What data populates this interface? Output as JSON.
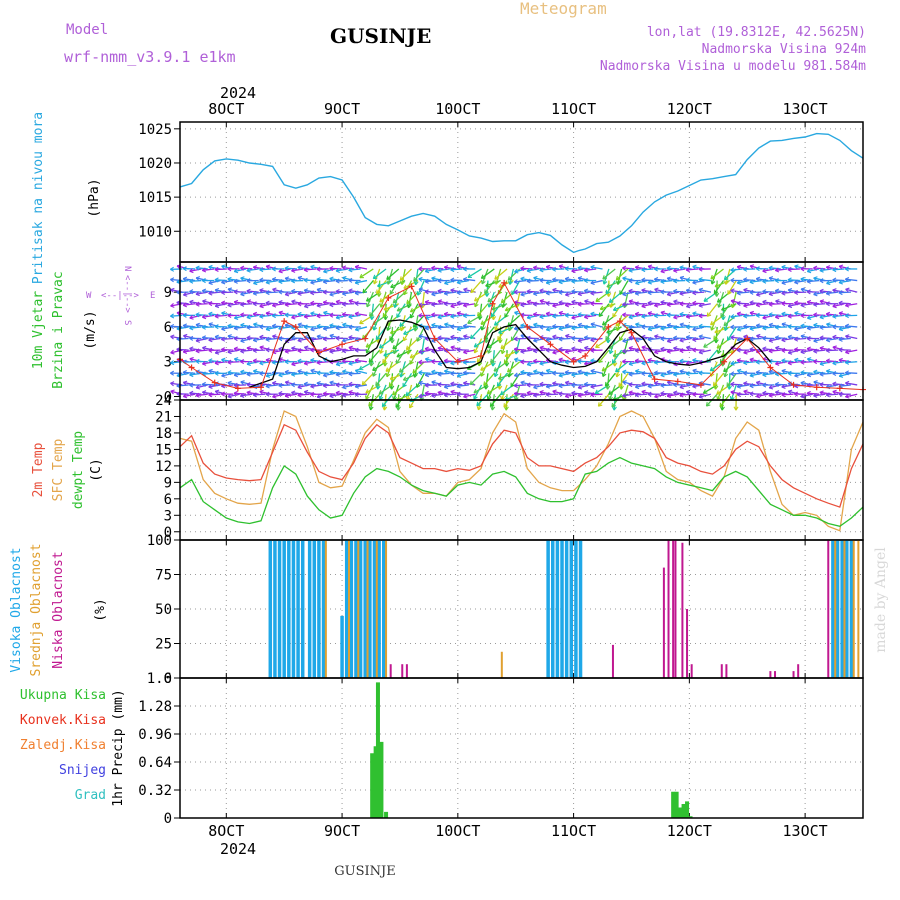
{
  "header": {
    "model_label": "Model",
    "model_name": "wrf-nmm_v3.9.1  e1km",
    "station": "GUSINJE",
    "product": "Meteogram",
    "lonlat": "lon,lat (19.8312E, 42.5625N)",
    "elevation": "Nadmorska Visina 924m",
    "model_elevation": "Nadmorska Visina u modelu 981.584m"
  },
  "footer": {
    "station": "GUSINJE",
    "credit": "made by Angel"
  },
  "time_axis": {
    "year": "2024",
    "ticks": [
      "8OCT",
      "9OCT",
      "10OCT",
      "11OCT",
      "12OCT",
      "13OCT"
    ],
    "range_days": [
      7.6,
      13.5
    ]
  },
  "colors": {
    "pressure": "#29a8e0",
    "wind_speed": "#000000",
    "gust": "#e8301c",
    "t2m": "#e8503c",
    "sfc": "#e3a54a",
    "dewpt": "#2ec02e",
    "high_cloud": "#1fa8e8",
    "mid_cloud": "#e0a030",
    "low_cloud": "#c01890",
    "precip": "#30c030"
  },
  "chart_data": [
    {
      "type": "line",
      "ylabel": "Pritisak na nivou mora",
      "unit": "(hPa)",
      "yticks": [
        "1025",
        "1020",
        "1015",
        "1010"
      ],
      "ylim": [
        1005.5,
        1026
      ],
      "series": [
        {
          "x": [
            7.6,
            7.7,
            7.8,
            7.9,
            8.0,
            8.1,
            8.2,
            8.3,
            8.4,
            8.5,
            8.6,
            8.7,
            8.8,
            8.9,
            9.0,
            9.1,
            9.2,
            9.3,
            9.4,
            9.5,
            9.6,
            9.7,
            9.8,
            9.9,
            10.0,
            10.1,
            10.2,
            10.3,
            10.4,
            10.5,
            10.6,
            10.7,
            10.8,
            10.9,
            11.0,
            11.05,
            11.1,
            11.2,
            11.3,
            11.4,
            11.5,
            11.6,
            11.7,
            11.8,
            11.9,
            12.0,
            12.1,
            12.2,
            12.3,
            12.4,
            12.5,
            12.6,
            12.7,
            12.8,
            12.9,
            13.0,
            13.1,
            13.2,
            13.3,
            13.4,
            13.5
          ],
          "y": [
            1016.5,
            1017,
            1019,
            1020.3,
            1020.6,
            1020.4,
            1020,
            1019.8,
            1019.5,
            1016.8,
            1016.3,
            1016.8,
            1017.8,
            1018,
            1017.5,
            1015,
            1012,
            1011,
            1010.8,
            1011.5,
            1012.2,
            1012.6,
            1012.2,
            1011,
            1010.2,
            1009.3,
            1009,
            1008.5,
            1008.6,
            1008.6,
            1009.5,
            1009.8,
            1009.4,
            1008,
            1006.9,
            1007.2,
            1007.4,
            1008.2,
            1008.4,
            1009.3,
            1010.8,
            1012.8,
            1014.3,
            1015.3,
            1015.9,
            1016.7,
            1017.5,
            1017.7,
            1018,
            1018.3,
            1020.5,
            1022.2,
            1023.2,
            1023.3,
            1023.6,
            1023.8,
            1024.3,
            1024.2,
            1023.3,
            1021.8,
            1020.7
          ]
        }
      ]
    },
    {
      "type": "line",
      "ylabel": "10m Vjetar Brzina i Pravac",
      "unit": "(m/s)",
      "compass": {
        "n": "N",
        "s": "S",
        "w": "W",
        "e": "E"
      },
      "yticks": [
        "9",
        "6",
        "3",
        "0"
      ],
      "ylim": [
        -0.3,
        11.6
      ],
      "series": [
        {
          "x": [
            8.2,
            8.4,
            8.5,
            8.6,
            8.7,
            8.8,
            8.9,
            9.0,
            9.1,
            9.2,
            9.3,
            9.4,
            9.5,
            9.6,
            9.7,
            9.8,
            9.9,
            10.0,
            10.1,
            10.2,
            10.3,
            10.4,
            10.5,
            10.6,
            10.7,
            10.8,
            10.9,
            11.0,
            11.1,
            11.2,
            11.3,
            11.4,
            11.5,
            11.6,
            11.7,
            11.8,
            11.9,
            12.0,
            12.1,
            12.2,
            12.3,
            12.4,
            12.5,
            12.6,
            12.7
          ],
          "y": [
            0.8,
            1.5,
            4.5,
            5.5,
            5.5,
            3.5,
            3.0,
            3.2,
            3.5,
            3.5,
            4.2,
            6.5,
            6.6,
            6.4,
            6.0,
            4.0,
            2.5,
            2.4,
            2.5,
            3.0,
            5.5,
            6.0,
            6.2,
            5.0,
            4.0,
            3.0,
            2.7,
            2.5,
            2.6,
            3.0,
            4.2,
            5.5,
            5.8,
            5.0,
            3.5,
            3.0,
            2.8,
            2.7,
            2.9,
            3.2,
            3.5,
            4.5,
            5.0,
            4.2,
            3.0
          ]
        },
        {
          "x": [
            7.6,
            7.7,
            7.9,
            8.1,
            8.3,
            8.5,
            8.6,
            8.8,
            9.0,
            9.2,
            9.4,
            9.6,
            9.8,
            10.0,
            10.2,
            10.3,
            10.4,
            10.6,
            10.8,
            11.0,
            11.1,
            11.3,
            11.4,
            11.5,
            11.7,
            11.9,
            12.1,
            12.3,
            12.5,
            12.7,
            12.9,
            13.1,
            13.3,
            13.5
          ],
          "y": [
            3.2,
            2.5,
            1.2,
            0.7,
            0.8,
            6.5,
            6.0,
            3.8,
            4.5,
            5.0,
            8.5,
            9.5,
            5.0,
            3.0,
            3.5,
            8.0,
            9.8,
            6.0,
            4.5,
            3.0,
            3.5,
            6.0,
            6.5,
            5.5,
            1.5,
            1.3,
            1.0,
            3.0,
            5.0,
            2.5,
            1.0,
            0.8,
            0.7,
            0.6
          ]
        }
      ]
    },
    {
      "type": "line",
      "ylabels": [
        "2m Temp",
        "SFC Temp",
        "dewpt Temp"
      ],
      "unit": "(C)",
      "yticks": [
        "24",
        "21",
        "18",
        "15",
        "12",
        "9",
        "6",
        "3",
        "0"
      ],
      "ylim": [
        -1.5,
        24
      ],
      "series": [
        {
          "name": "2m Temp",
          "x": [
            7.6,
            7.7,
            7.8,
            7.9,
            8.0,
            8.1,
            8.2,
            8.3,
            8.4,
            8.5,
            8.6,
            8.7,
            8.8,
            8.9,
            9.0,
            9.1,
            9.2,
            9.3,
            9.4,
            9.5,
            9.6,
            9.7,
            9.8,
            9.9,
            10.0,
            10.1,
            10.2,
            10.3,
            10.4,
            10.5,
            10.6,
            10.7,
            10.8,
            10.9,
            11.0,
            11.1,
            11.2,
            11.3,
            11.4,
            11.5,
            11.6,
            11.7,
            11.8,
            11.9,
            12.0,
            12.1,
            12.2,
            12.3,
            12.4,
            12.5,
            12.6,
            12.7,
            12.8,
            12.9,
            13.0,
            13.1,
            13.2,
            13.3,
            13.4,
            13.5
          ],
          "y": [
            15.5,
            17.5,
            12.5,
            10.5,
            9.8,
            9.5,
            9.3,
            9.5,
            14.5,
            19.5,
            18.5,
            14.5,
            11.0,
            10.0,
            9.5,
            12.5,
            17.0,
            19.5,
            18.0,
            13.5,
            12.5,
            11.5,
            11.5,
            11.0,
            11.5,
            11.2,
            12.0,
            16.0,
            18.5,
            18.0,
            13.5,
            12.0,
            12.0,
            11.5,
            11.0,
            12.5,
            13.5,
            15.5,
            18.0,
            18.5,
            18.2,
            17.0,
            13.5,
            12.5,
            12.0,
            11.0,
            10.5,
            12.0,
            15.0,
            16.5,
            15.5,
            12.0,
            9.5,
            8.0,
            7.0,
            6.0,
            5.2,
            4.5,
            11.5,
            16.0
          ]
        },
        {
          "name": "SFC Temp",
          "x": [
            7.6,
            7.7,
            7.8,
            7.9,
            8.0,
            8.1,
            8.2,
            8.3,
            8.4,
            8.5,
            8.6,
            8.7,
            8.8,
            8.9,
            9.0,
            9.1,
            9.2,
            9.3,
            9.4,
            9.5,
            9.6,
            9.7,
            9.8,
            9.9,
            10.0,
            10.1,
            10.2,
            10.3,
            10.4,
            10.5,
            10.6,
            10.7,
            10.8,
            10.9,
            11.0,
            11.1,
            11.2,
            11.3,
            11.4,
            11.5,
            11.6,
            11.7,
            11.8,
            11.9,
            12.0,
            12.1,
            12.2,
            12.3,
            12.4,
            12.5,
            12.6,
            12.7,
            12.8,
            12.9,
            13.0,
            13.1,
            13.2,
            13.3,
            13.4,
            13.5
          ],
          "y": [
            17.0,
            16.5,
            9.5,
            7.0,
            6.0,
            5.2,
            5.0,
            5.2,
            15.0,
            22.0,
            21.0,
            15.5,
            9.0,
            8.0,
            8.3,
            13.0,
            18.0,
            20.5,
            19.0,
            11.0,
            8.5,
            7.0,
            7.0,
            6.5,
            9.0,
            9.5,
            11.5,
            18.0,
            21.5,
            20.0,
            11.5,
            9.0,
            8.0,
            7.5,
            7.5,
            9.5,
            12.0,
            16.0,
            21.0,
            22.0,
            21.0,
            17.0,
            11.0,
            9.5,
            9.0,
            7.5,
            6.5,
            10.0,
            17.0,
            20.0,
            18.5,
            11.0,
            5.0,
            3.0,
            3.5,
            3.0,
            1.0,
            0.2,
            15.0,
            20.0
          ]
        },
        {
          "name": "dewpt Temp",
          "x": [
            7.6,
            7.7,
            7.8,
            7.9,
            8.0,
            8.1,
            8.2,
            8.3,
            8.4,
            8.5,
            8.6,
            8.7,
            8.8,
            8.9,
            9.0,
            9.1,
            9.2,
            9.3,
            9.4,
            9.5,
            9.6,
            9.7,
            9.8,
            9.9,
            10.0,
            10.1,
            10.2,
            10.3,
            10.4,
            10.5,
            10.6,
            10.7,
            10.8,
            10.9,
            11.0,
            11.1,
            11.2,
            11.3,
            11.4,
            11.5,
            11.6,
            11.7,
            11.8,
            11.9,
            12.0,
            12.1,
            12.2,
            12.3,
            12.4,
            12.5,
            12.6,
            12.7,
            12.8,
            12.9,
            13.0,
            13.1,
            13.2,
            13.3,
            13.4,
            13.5
          ],
          "y": [
            8.0,
            9.5,
            5.5,
            4.0,
            2.5,
            1.8,
            1.5,
            2.0,
            8.0,
            12.0,
            10.5,
            6.5,
            4.0,
            2.5,
            3.0,
            7.0,
            10.0,
            11.5,
            11.0,
            10.0,
            8.5,
            7.5,
            7.0,
            6.5,
            8.5,
            9.0,
            8.5,
            10.5,
            11.0,
            10.0,
            7.0,
            6.0,
            5.5,
            5.5,
            6.0,
            10.5,
            11.0,
            12.5,
            13.5,
            12.5,
            12.0,
            11.5,
            10.0,
            9.0,
            8.5,
            8.0,
            7.5,
            10.0,
            11.0,
            10.0,
            7.5,
            5.0,
            4.0,
            3.0,
            3.0,
            2.5,
            1.5,
            1.0,
            2.5,
            4.5
          ]
        }
      ]
    },
    {
      "type": "bar",
      "ylabels": [
        "Visoka Oblacnost",
        "Srednja Oblacnost",
        "Niska Oblacnost"
      ],
      "unit": "(%)",
      "yticks": [
        "100",
        "75",
        "50",
        "25",
        "0"
      ],
      "ylim": [
        0,
        100
      ],
      "series": [
        {
          "name": "Visoka Oblacnost",
          "x": [
            8.38,
            8.42,
            8.46,
            8.5,
            8.54,
            8.58,
            8.62,
            8.66,
            8.72,
            8.76,
            8.8,
            8.84,
            9.0,
            9.04,
            9.08,
            9.12,
            9.16,
            9.2,
            9.24,
            9.28,
            9.32,
            9.36,
            10.78,
            10.82,
            10.86,
            10.9,
            10.94,
            10.98,
            11.02,
            11.06,
            13.24,
            13.28,
            13.32,
            13.36,
            13.4
          ],
          "y": [
            100,
            100,
            100,
            100,
            100,
            100,
            100,
            100,
            100,
            100,
            100,
            100,
            45,
            100,
            100,
            100,
            100,
            100,
            100,
            100,
            100,
            100,
            100,
            100,
            100,
            100,
            100,
            100,
            100,
            100,
            100,
            100,
            100,
            100,
            100
          ]
        },
        {
          "name": "Srednja Oblacnost",
          "x": [
            8.86,
            9.06,
            9.14,
            9.22,
            9.3,
            9.38,
            10.38,
            13.26,
            13.34,
            13.42,
            13.46
          ],
          "y": [
            100,
            100,
            100,
            100,
            100,
            100,
            19,
            100,
            100,
            100,
            100
          ]
        },
        {
          "name": "Niska Oblacnost",
          "x": [
            9.42,
            9.52,
            9.56,
            11.34,
            11.78,
            11.82,
            11.86,
            11.88,
            11.94,
            11.98,
            12.02,
            12.28,
            12.32,
            12.7,
            12.74,
            12.9,
            12.94,
            13.2
          ],
          "y": [
            10,
            10,
            10,
            24,
            80,
            100,
            100,
            100,
            98,
            50,
            10,
            10,
            10,
            5,
            5,
            5,
            10,
            100
          ]
        }
      ]
    },
    {
      "type": "bar",
      "ylabel": "1hr Precip",
      "unit": "(mm)",
      "legend": [
        "Ukupna Kisa",
        "Konvek.Kisa",
        "Zaledj.Kisa",
        "Snijeg",
        "Grad"
      ],
      "yticks": [
        "1.6",
        "1.28",
        "0.96",
        "0.64",
        "0.32",
        "0"
      ],
      "ylim": [
        0,
        1.6
      ],
      "series": [
        {
          "name": "Ukupna Kisa",
          "x": [
            9.26,
            9.29,
            9.31,
            9.34,
            9.38,
            11.86,
            11.89,
            11.92,
            11.95,
            11.98,
            12.01
          ],
          "y": [
            0.74,
            0.82,
            1.55,
            0.87,
            0.07,
            0.3,
            0.3,
            0.12,
            0.16,
            0.19,
            0.02
          ]
        }
      ]
    }
  ]
}
